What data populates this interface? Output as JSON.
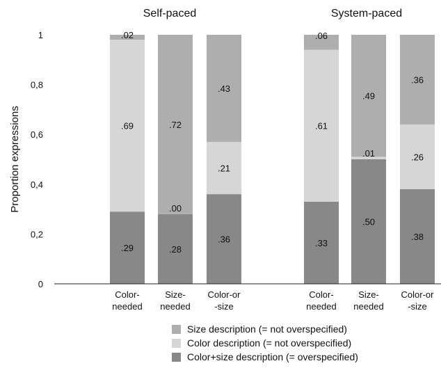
{
  "chart_data": {
    "type": "bar",
    "stacked": true,
    "ylabel": "Proportion expressions",
    "ylim": [
      0,
      1
    ],
    "yticks": [
      "0",
      "0,2",
      "0,4",
      "0,6",
      "0,8",
      "1"
    ],
    "ytick_values": [
      0,
      0.2,
      0.4,
      0.6,
      0.8,
      1
    ],
    "grid": false,
    "legend_position": "bottom",
    "series": [
      {
        "name": "Color+size description (= overspecified)",
        "color": "#888888"
      },
      {
        "name": "Color description (= not overspecified)",
        "color": "#d6d6d6"
      },
      {
        "name": "Size description (= not overspecified)",
        "color": "#aeaeae"
      }
    ],
    "legend_order": [
      2,
      1,
      0
    ],
    "panels": [
      {
        "title": "Self-paced",
        "categories": [
          {
            "lines": [
              "Color-",
              "needed"
            ],
            "values": [
              0.29,
              0.69,
              0.02
            ],
            "labels": [
              ".29",
              ".69",
              ".02"
            ]
          },
          {
            "lines": [
              "Size-",
              "needed"
            ],
            "values": [
              0.28,
              0.0,
              0.72
            ],
            "labels": [
              ".28",
              ".00",
              ".72"
            ]
          },
          {
            "lines": [
              "Color-or",
              "-size"
            ],
            "values": [
              0.36,
              0.21,
              0.43
            ],
            "labels": [
              ".36",
              ".21",
              ".43"
            ]
          }
        ]
      },
      {
        "title": "System-paced",
        "categories": [
          {
            "lines": [
              "Color-",
              "needed"
            ],
            "values": [
              0.33,
              0.61,
              0.06
            ],
            "labels": [
              ".33",
              ".61",
              ".06"
            ]
          },
          {
            "lines": [
              "Size-",
              "needed"
            ],
            "values": [
              0.5,
              0.01,
              0.49
            ],
            "labels": [
              ".50",
              ".01",
              ".49"
            ]
          },
          {
            "lines": [
              "Color-or",
              "-size"
            ],
            "values": [
              0.38,
              0.26,
              0.36
            ],
            "labels": [
              ".38",
              ".26",
              ".36"
            ]
          }
        ]
      }
    ]
  }
}
